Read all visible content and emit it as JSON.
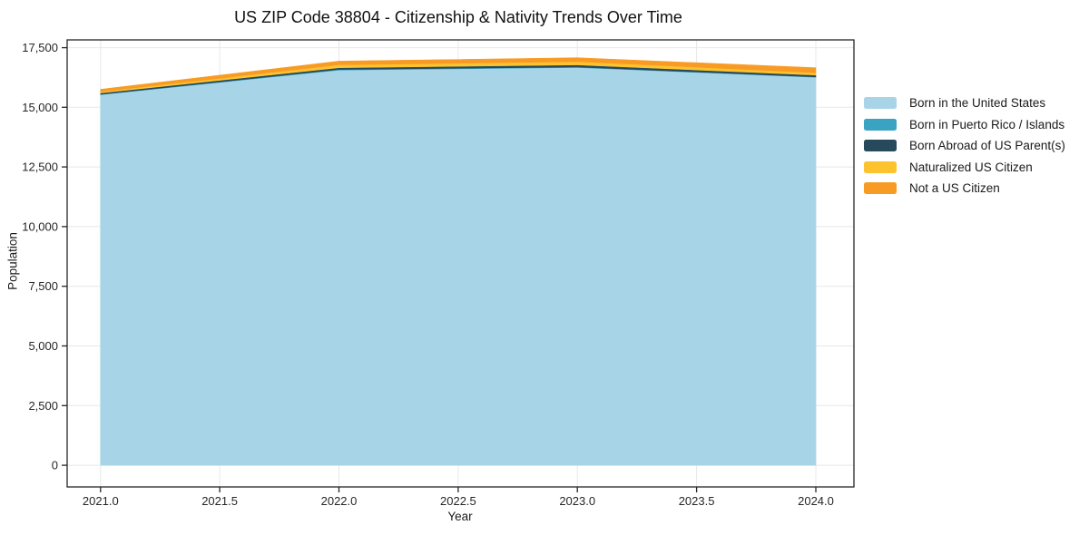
{
  "chart_data": {
    "type": "area",
    "stacked": true,
    "title": "US ZIP Code 38804 - Citizenship & Nativity Trends Over Time",
    "xlabel": "Year",
    "ylabel": "Population",
    "x": [
      2021,
      2022,
      2023,
      2024
    ],
    "series": [
      {
        "name": "Born in the United States",
        "color": "#a8d4e8",
        "values": [
          15530,
          16560,
          16670,
          16260
        ]
      },
      {
        "name": "Born in Puerto Rico / Islands",
        "color": "#3ba3c2",
        "values": [
          15,
          25,
          20,
          15
        ]
      },
      {
        "name": "Born Abroad of US Parent(s)",
        "color": "#26495c",
        "values": [
          55,
          75,
          85,
          75
        ]
      },
      {
        "name": "Naturalized US Citizen",
        "color": "#fdc32f",
        "values": [
          50,
          120,
          140,
          95
        ]
      },
      {
        "name": "Not a US Citizen",
        "color": "#f89b25",
        "values": [
          105,
          155,
          160,
          215
        ]
      }
    ],
    "xticks": {
      "values": [
        2021.0,
        2021.5,
        2022.0,
        2022.5,
        2023.0,
        2023.5,
        2024.0
      ],
      "labels": [
        "2021.0",
        "2021.5",
        "2022.0",
        "2022.5",
        "2023.0",
        "2023.5",
        "2024.0"
      ]
    },
    "yticks": {
      "values": [
        0,
        2500,
        5000,
        7500,
        10000,
        12500,
        15000,
        17500
      ],
      "labels": [
        "0",
        "2,500",
        "5,000",
        "7,500",
        "10,000",
        "12,500",
        "15,000",
        "17,500"
      ]
    },
    "xlim": [
      2020.86,
      2024.16
    ],
    "ylim": [
      -910,
      17825
    ],
    "grid": true,
    "legend_position": "right",
    "colors": {
      "background": "#ffffff",
      "grid": "#e8e8e8",
      "spine": "#262626",
      "tick": "#262626",
      "text": "#1a1a1a"
    }
  }
}
